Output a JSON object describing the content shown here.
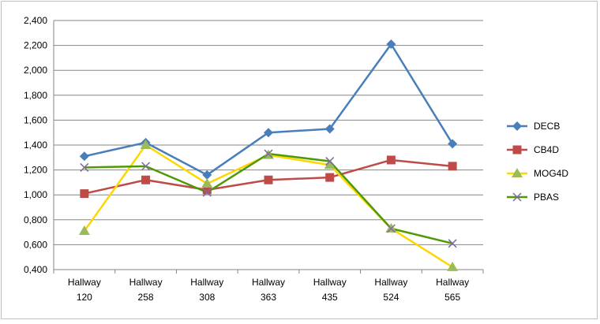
{
  "chart_data": {
    "type": "line",
    "title": "",
    "xlabel": "",
    "ylabel": "",
    "categories": [
      [
        "Hallway",
        "120"
      ],
      [
        "Hallway",
        "258"
      ],
      [
        "Hallway",
        "308"
      ],
      [
        "Hallway",
        "363"
      ],
      [
        "Hallway",
        "435"
      ],
      [
        "Hallway",
        "524"
      ],
      [
        "Hallway",
        "565"
      ]
    ],
    "ylim": [
      0.4,
      2.4
    ],
    "yticks": [
      "0,400",
      "0,600",
      "0,800",
      "1,000",
      "1,200",
      "1,400",
      "1,600",
      "1,800",
      "2,000",
      "2,200",
      "2,400"
    ],
    "grid": true,
    "legend_position": "right",
    "series": [
      {
        "name": "DECB",
        "color": "#4a7ebb",
        "marker": "diamond",
        "values": [
          1.31,
          1.42,
          1.16,
          1.5,
          1.53,
          2.21,
          1.41
        ]
      },
      {
        "name": "CB4D",
        "color": "#be4b48",
        "marker": "square",
        "values": [
          1.01,
          1.12,
          1.04,
          1.12,
          1.14,
          1.28,
          1.23
        ]
      },
      {
        "name": "MOG4D",
        "color": "#ffd700",
        "marker": "triangle",
        "values": [
          0.71,
          1.4,
          1.09,
          1.32,
          1.24,
          0.73,
          0.42
        ]
      },
      {
        "name": "PBAS",
        "color": "#4e9a06",
        "marker": "x",
        "marker_color": "#7f6a9c",
        "values": [
          1.22,
          1.23,
          1.02,
          1.33,
          1.27,
          0.73,
          0.61
        ]
      }
    ]
  }
}
